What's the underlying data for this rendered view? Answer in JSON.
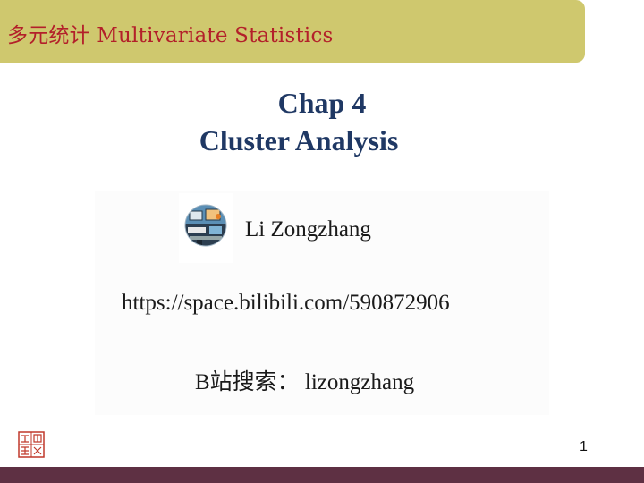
{
  "header": {
    "course_title": "多元统计 Multivariate Statistics"
  },
  "slide": {
    "chapter": "Chap 4",
    "title": "Cluster Analysis"
  },
  "author": {
    "name": "Li Zongzhang",
    "avatar_icon": "computer-desk-icon"
  },
  "link": {
    "url": "https://space.bilibili.com/590872906"
  },
  "search": {
    "text": "B站搜索： lizongzhang"
  },
  "footer": {
    "page_number": "1",
    "seal_icon": "red-seal-stamp"
  },
  "colors": {
    "header_bg": "#cfc86e",
    "header_text": "#b3202a",
    "title": "#1f3864",
    "footer_bar": "#5e3043",
    "seal": "#c0392b"
  }
}
